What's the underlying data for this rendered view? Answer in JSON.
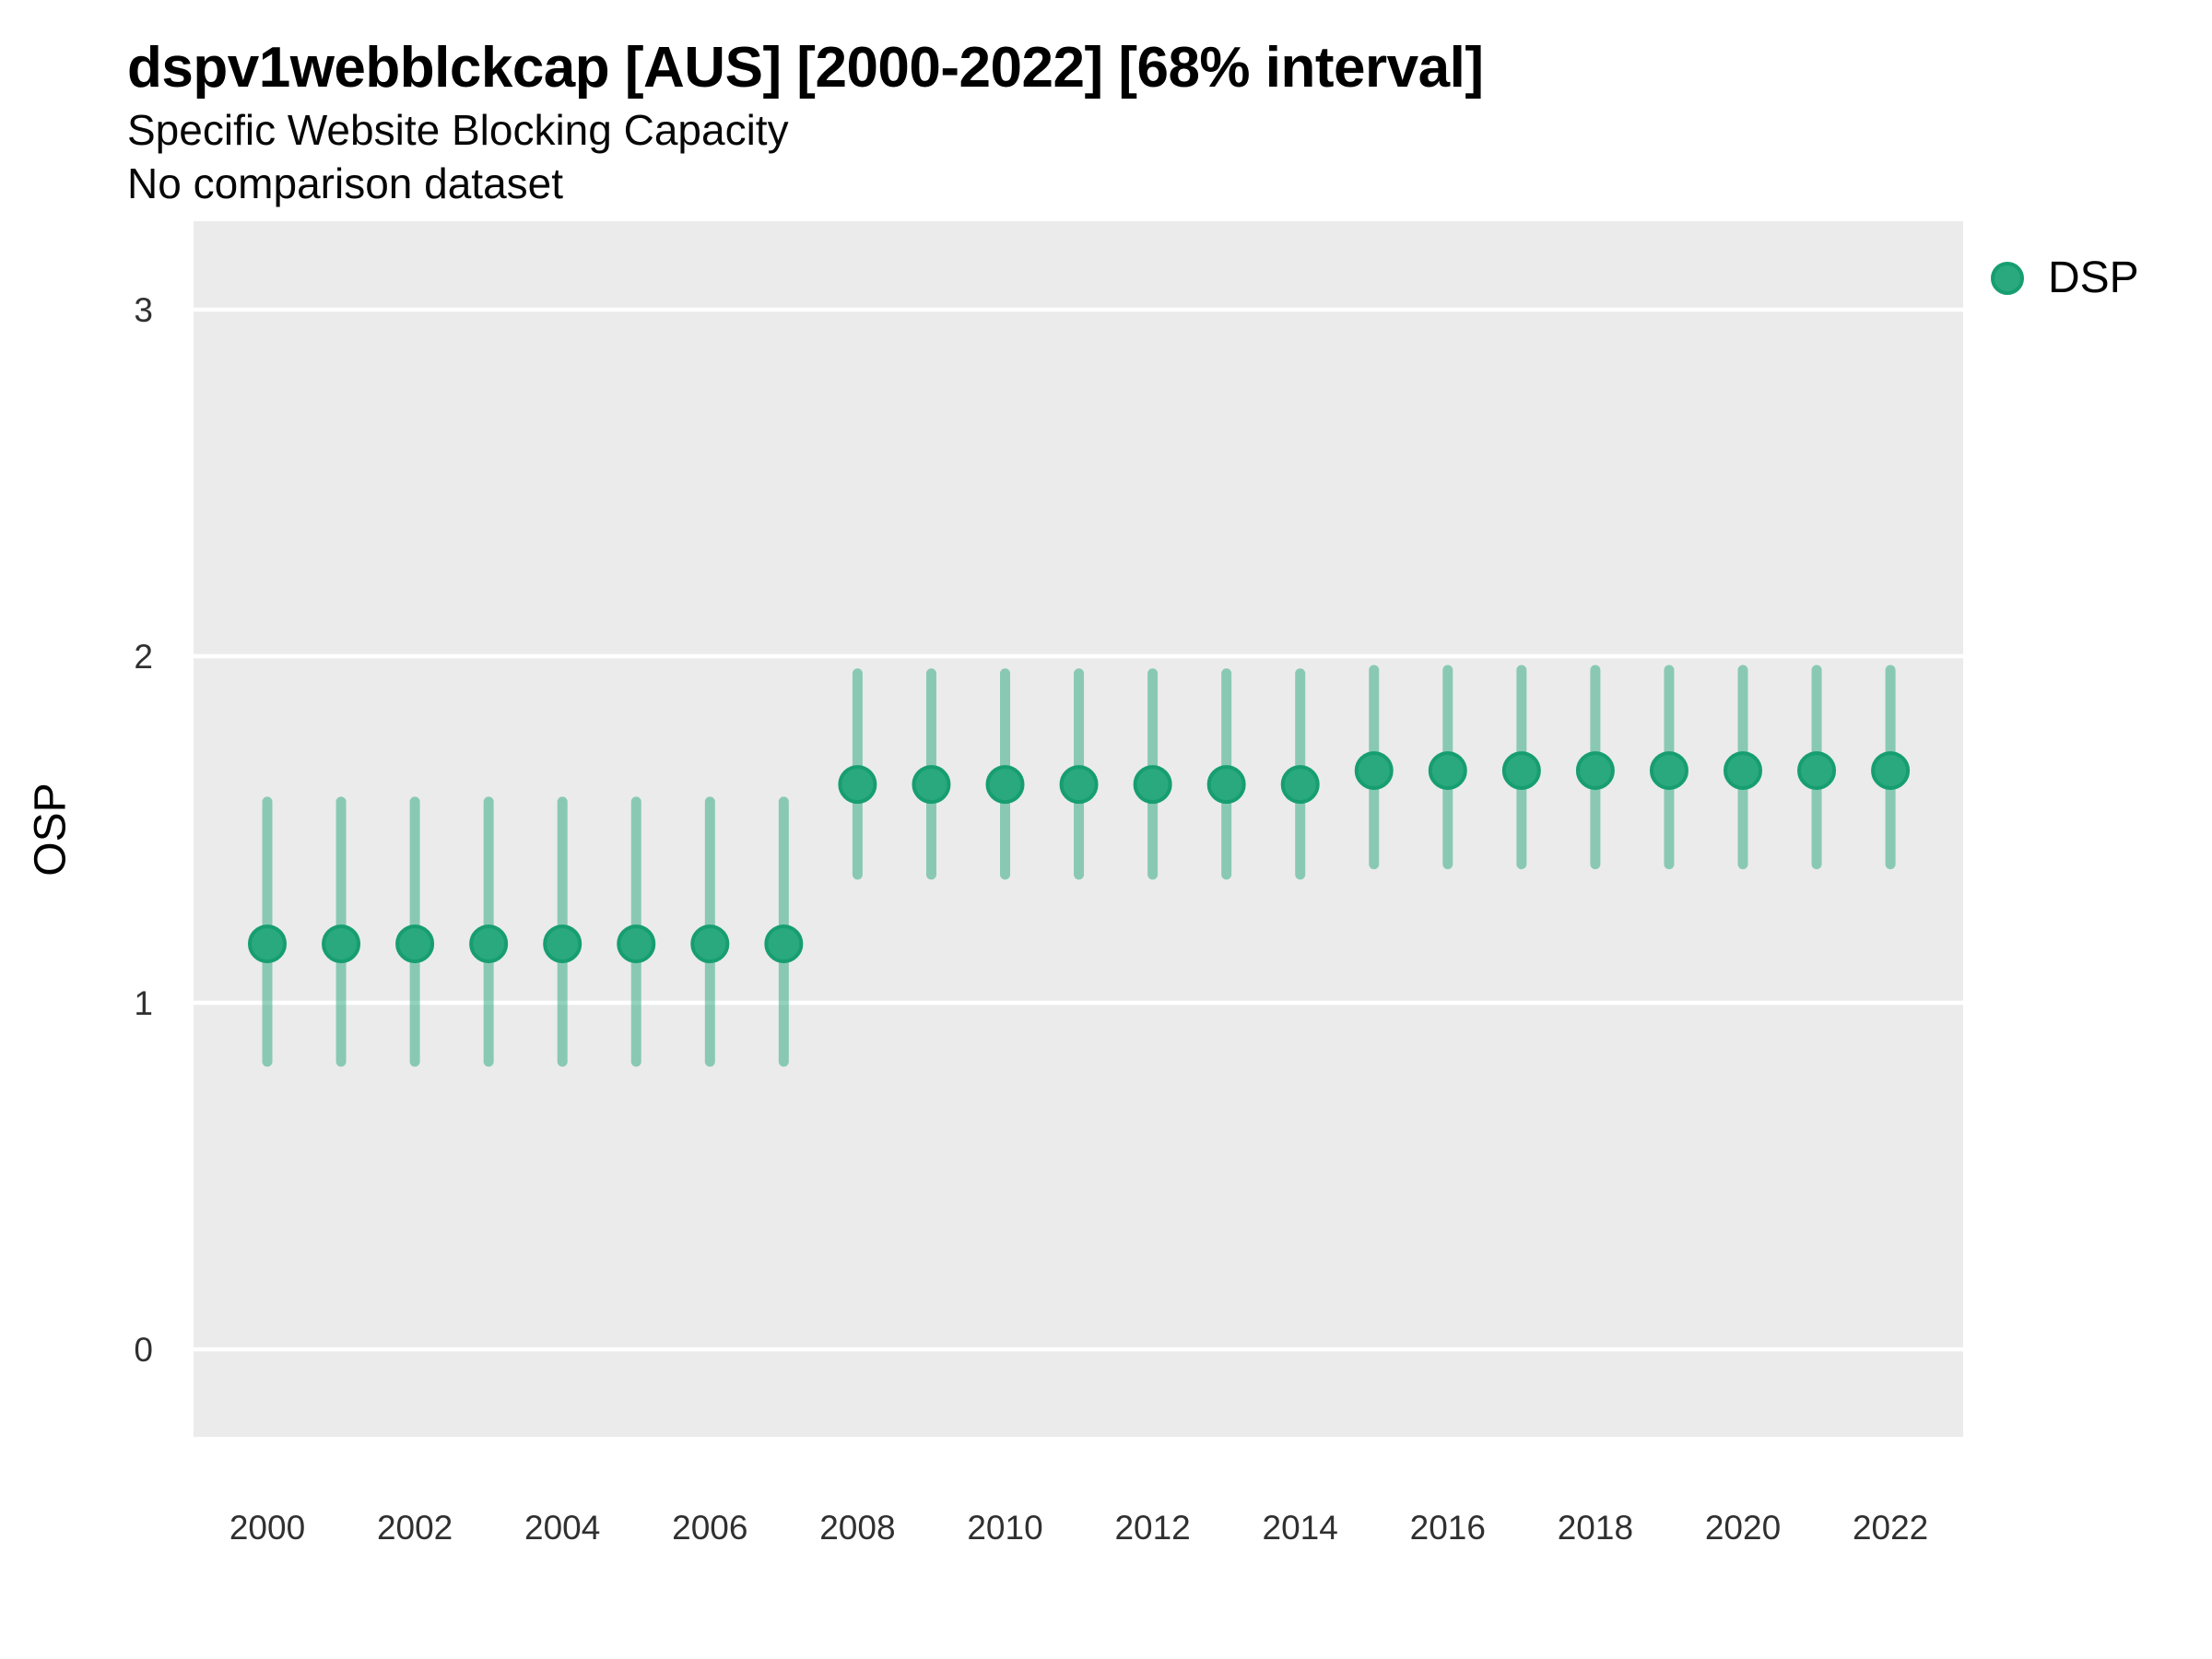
{
  "header": {
    "title": "dspv1webblckcap [AUS] [2000-2022] [68% interval]",
    "subtitle": "Specific Website Blocking Capacity",
    "caption": "No comparison dataset"
  },
  "legend": {
    "position": "right",
    "items": [
      {
        "label": "DSP",
        "marker": "circle"
      }
    ]
  },
  "axes": {
    "y_title": "OSP",
    "y_tick_labels": [
      "0",
      "1",
      "2",
      "3"
    ],
    "x_tick_labels": [
      "2000",
      "2002",
      "2004",
      "2006",
      "2008",
      "2010",
      "2012",
      "2014",
      "2016",
      "2018",
      "2020",
      "2022"
    ]
  },
  "colors": {
    "point_fill": "#2aa87e",
    "point_stroke": "#179e70",
    "errorbar_green": "#2aa87e",
    "panel_background": "#ebebeb",
    "gridline": "#ffffff",
    "tick_text": "#303030",
    "title_text": "#000000"
  },
  "chart_data": {
    "type": "pointrange",
    "title": "dspv1webblckcap [AUS] [2000-2022] [68% interval]",
    "subtitle": "Specific Website Blocking Capacity",
    "caption": "No comparison dataset",
    "interval": "68%",
    "xlabel": "",
    "ylabel": "OSP",
    "y_ticks": [
      0,
      1,
      2,
      3
    ],
    "ylim_drawn": [
      -0.25,
      3.25
    ],
    "grid": "horizontal-major-only",
    "legend_position": "right",
    "x": [
      2000,
      2001,
      2002,
      2003,
      2004,
      2005,
      2006,
      2007,
      2008,
      2009,
      2010,
      2011,
      2012,
      2013,
      2014,
      2015,
      2016,
      2017,
      2018,
      2019,
      2020,
      2021,
      2022
    ],
    "series": [
      {
        "name": "DSP",
        "mid": [
          1.17,
          1.17,
          1.17,
          1.17,
          1.17,
          1.17,
          1.17,
          1.17,
          1.63,
          1.63,
          1.63,
          1.63,
          1.63,
          1.63,
          1.63,
          1.67,
          1.67,
          1.67,
          1.67,
          1.67,
          1.67,
          1.67,
          1.67
        ],
        "lo": [
          0.83,
          0.83,
          0.83,
          0.83,
          0.83,
          0.83,
          0.83,
          0.83,
          1.37,
          1.37,
          1.37,
          1.37,
          1.37,
          1.37,
          1.37,
          1.4,
          1.4,
          1.4,
          1.4,
          1.4,
          1.4,
          1.4,
          1.4
        ],
        "hi": [
          1.58,
          1.58,
          1.58,
          1.58,
          1.58,
          1.58,
          1.58,
          1.58,
          1.95,
          1.95,
          1.95,
          1.95,
          1.95,
          1.95,
          1.95,
          1.96,
          1.96,
          1.96,
          1.96,
          1.96,
          1.96,
          1.96,
          1.96
        ]
      }
    ]
  }
}
